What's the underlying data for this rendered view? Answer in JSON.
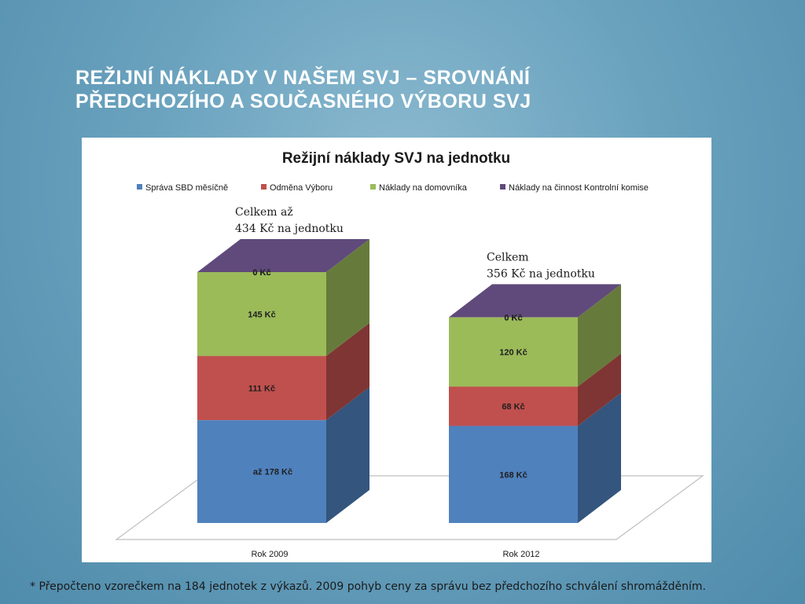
{
  "slide": {
    "title_line1": "Režijní náklady v našem SVJ – srovnání",
    "title_line2": "předchozího a současného výboru SVJ",
    "footnote": "* Přepočteno vzorečkem na 184 jednotek z výkazů. 2009 pohyb ceny za správu bez předchozího schválení shromážděním."
  },
  "chart_data": {
    "type": "bar",
    "stacked": true,
    "three_d": true,
    "title": "Režijní náklady SVJ na jednotku",
    "xlabel": "",
    "ylabel": "",
    "legend_position": "top",
    "categories": [
      "Rok 2009",
      "Rok 2012"
    ],
    "series": [
      {
        "name": "Správa SBD měsíčně",
        "values": [
          178,
          168
        ],
        "labels": [
          "až   178 Kč",
          "168 Kč"
        ],
        "color": "#4f81bd"
      },
      {
        "name": "Odměna Výboru",
        "values": [
          111,
          68
        ],
        "labels": [
          "111 Kč",
          "68 Kč"
        ],
        "color": "#c0504d"
      },
      {
        "name": "Náklady na domovníka",
        "values": [
          145,
          120
        ],
        "labels": [
          "145 Kč",
          "120 Kč"
        ],
        "color": "#9bbb59"
      },
      {
        "name": "Náklady na činnost Kontrolní komise",
        "values": [
          0,
          0
        ],
        "labels": [
          "0 Kč",
          "0 Kč"
        ],
        "color": "#604a7b"
      }
    ],
    "annotations": [
      {
        "category": "Rok 2009",
        "line1": "Celkem až",
        "line2": "434 Kč na jednotku"
      },
      {
        "category": "Rok 2012",
        "line1": "Celkem",
        "line2": "356 Kč na jednotku"
      }
    ]
  }
}
